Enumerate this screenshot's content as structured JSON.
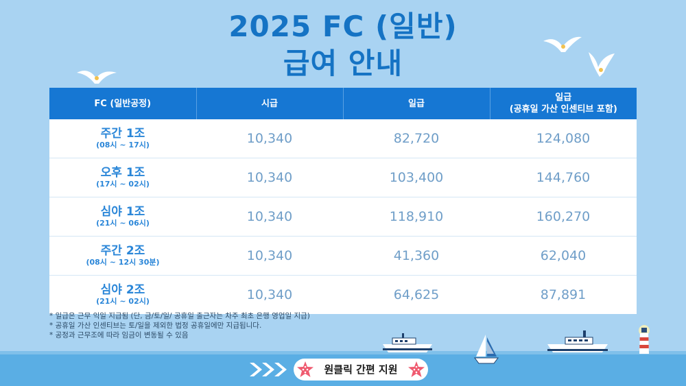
{
  "title": {
    "line1": "2025 FC (일반)",
    "line2": "급여 안내"
  },
  "table": {
    "headers": [
      "FC (일반공정)",
      "시급",
      "일급",
      "일급\n(공휴일 가산 인센티브 포함)"
    ],
    "rows": [
      {
        "shift": "주간 1조",
        "time": "(08시 ~ 17시)",
        "hourly": "10,340",
        "daily": "82,720",
        "holiday": "124,080"
      },
      {
        "shift": "오후 1조",
        "time": "(17시 ~ 02시)",
        "hourly": "10,340",
        "daily": "103,400",
        "holiday": "144,760"
      },
      {
        "shift": "심야 1조",
        "time": "(21시 ~ 06시)",
        "hourly": "10,340",
        "daily": "118,910",
        "holiday": "160,270"
      },
      {
        "shift": "주간 2조",
        "time": "(08시 ~ 12시 30분)",
        "hourly": "10,340",
        "daily": "41,360",
        "holiday": "62,040"
      },
      {
        "shift": "심야 2조",
        "time": "(21시 ~ 02시)",
        "hourly": "10,340",
        "daily": "64,625",
        "holiday": "87,891"
      }
    ]
  },
  "notes": [
    "* 일급은 근무 익일 지급됨 (단, 금/토/일/ 공휴일 출근자는 차주 최초 은행 영업일 지급)",
    "* 공휴일 가산 인센티브는 토/일을 제외한 법정 공휴일에만 지급됩니다.",
    "* 공정과 근무조에 따라 임금이 변동될 수 있음"
  ],
  "cta": {
    "label": "원클릭 간편 지원"
  },
  "icons": [
    "seagull-icon",
    "ship-icon",
    "sailboat-icon",
    "lighthouse-icon",
    "chevron-right-icon",
    "star-icon"
  ],
  "colors": {
    "background": "#a9d3f2",
    "title": "#1573c4",
    "header": "#1677d3",
    "sea": "#5aaee4"
  }
}
